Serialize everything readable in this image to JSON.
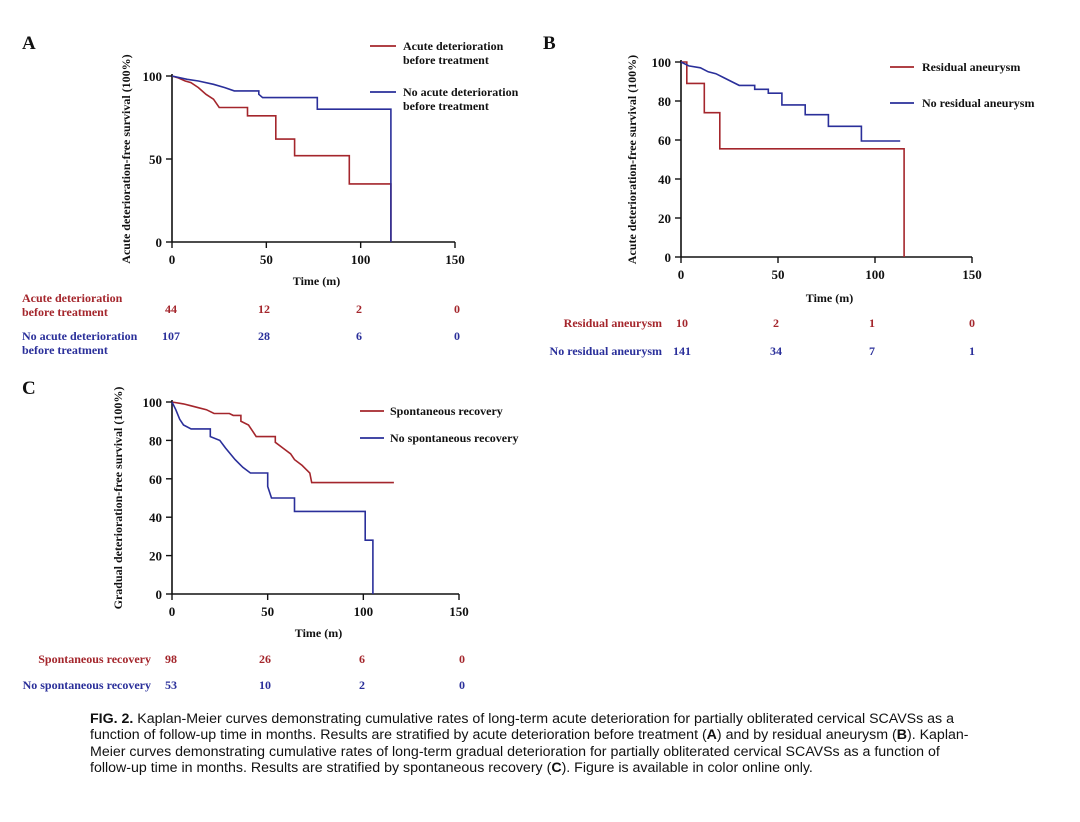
{
  "colors": {
    "red": "#a4262c",
    "blue": "#2a2f9a",
    "axis": "#111111"
  },
  "chart_data": [
    {
      "panel": "A",
      "type": "line",
      "xlabel": "Time (m)",
      "ylabel": "Acute deterioration-free survival (100%)",
      "xlim": [
        0,
        150
      ],
      "ylim": [
        0,
        100
      ],
      "xticks": [
        "0",
        "50",
        "100",
        "150"
      ],
      "yticks": [
        "0",
        "50",
        "100"
      ],
      "x_tick_values": [
        0,
        50,
        100,
        150
      ],
      "y_tick_values": [
        0,
        50,
        100
      ],
      "series": [
        {
          "name_lines": [
            "Acute deterioration",
            "before treatment"
          ],
          "color": "#a4262c",
          "points": [
            [
              0,
              100
            ],
            [
              3,
              99
            ],
            [
              7,
              97
            ],
            [
              10,
              96
            ],
            [
              14,
              93
            ],
            [
              18,
              89
            ],
            [
              22,
              86
            ],
            [
              25,
              81
            ],
            [
              40,
              81
            ],
            [
              40,
              76
            ],
            [
              55,
              76
            ],
            [
              55,
              62
            ],
            [
              65,
              62
            ],
            [
              65,
              52
            ],
            [
              94,
              52
            ],
            [
              94,
              35
            ],
            [
              116,
              35
            ],
            [
              116,
              0
            ]
          ]
        },
        {
          "name_lines": [
            "No acute deterioration",
            "before treatment"
          ],
          "color": "#2a2f9a",
          "points": [
            [
              0,
              100
            ],
            [
              4,
              99
            ],
            [
              8,
              98
            ],
            [
              14,
              97
            ],
            [
              22,
              95
            ],
            [
              28,
              93
            ],
            [
              33,
              91
            ],
            [
              46,
              91
            ],
            [
              46,
              89
            ],
            [
              48,
              87
            ],
            [
              77,
              87
            ],
            [
              77,
              80
            ],
            [
              116,
              80
            ],
            [
              116,
              0
            ]
          ]
        }
      ],
      "risk_table": {
        "x_values": [
          0,
          50,
          100,
          150
        ],
        "rows": [
          {
            "label_lines": [
              "Acute deterioration",
              "before treatment"
            ],
            "color": "#a4262c",
            "values": [
              "44",
              "12",
              "2",
              "0"
            ]
          },
          {
            "label_lines": [
              "No acute deterioration",
              "before treatment"
            ],
            "color": "#2a2f9a",
            "values": [
              "107",
              "28",
              "6",
              "0"
            ]
          }
        ]
      }
    },
    {
      "panel": "B",
      "type": "line",
      "xlabel": "Time (m)",
      "ylabel": "Acute deterioration-free survival (100%)",
      "xlim": [
        0,
        150
      ],
      "ylim": [
        0,
        100
      ],
      "xticks": [
        "0",
        "50",
        "100",
        "150"
      ],
      "yticks": [
        "0",
        "20",
        "40",
        "60",
        "80",
        "100"
      ],
      "x_tick_values": [
        0,
        50,
        100,
        150
      ],
      "y_tick_values": [
        0,
        20,
        40,
        60,
        80,
        100
      ],
      "series": [
        {
          "name_lines": [
            "Residual aneurysm"
          ],
          "color": "#a4262c",
          "points": [
            [
              0,
              100
            ],
            [
              3,
              100
            ],
            [
              3,
              89
            ],
            [
              12,
              89
            ],
            [
              12,
              74
            ],
            [
              20,
              74
            ],
            [
              20,
              55.5
            ],
            [
              115,
              55.5
            ],
            [
              115,
              0
            ]
          ]
        },
        {
          "name_lines": [
            "No residual aneurysm"
          ],
          "color": "#2a2f9a",
          "points": [
            [
              0,
              100
            ],
            [
              4,
              98
            ],
            [
              10,
              97
            ],
            [
              14,
              95
            ],
            [
              18,
              94
            ],
            [
              22,
              92
            ],
            [
              26,
              90
            ],
            [
              30,
              88
            ],
            [
              38,
              88
            ],
            [
              38,
              86
            ],
            [
              45,
              86
            ],
            [
              45,
              84
            ],
            [
              52,
              84
            ],
            [
              52,
              78
            ],
            [
              64,
              78
            ],
            [
              64,
              73
            ],
            [
              76,
              73
            ],
            [
              76,
              67
            ],
            [
              93,
              67
            ],
            [
              93,
              59.5
            ],
            [
              113,
              59.5
            ]
          ]
        }
      ],
      "risk_table": {
        "x_values": [
          0,
          50,
          100,
          150
        ],
        "rows": [
          {
            "label_lines": [
              "Residual aneurysm"
            ],
            "color": "#a4262c",
            "values": [
              "10",
              "2",
              "1",
              "0"
            ]
          },
          {
            "label_lines": [
              "No residual aneurysm"
            ],
            "color": "#2a2f9a",
            "values": [
              "141",
              "34",
              "7",
              "1"
            ]
          }
        ]
      }
    },
    {
      "panel": "C",
      "type": "line",
      "xlabel": "Time (m)",
      "ylabel": "Gradual deterioration-free survival (100%)",
      "xlim": [
        0,
        150
      ],
      "ylim": [
        0,
        100
      ],
      "xticks": [
        "0",
        "50",
        "100",
        "150"
      ],
      "yticks": [
        "0",
        "20",
        "40",
        "60",
        "80",
        "100"
      ],
      "x_tick_values": [
        0,
        50,
        100,
        150
      ],
      "y_tick_values": [
        0,
        20,
        40,
        60,
        80,
        100
      ],
      "series": [
        {
          "name_lines": [
            "Spontaneous recovery"
          ],
          "color": "#a4262c",
          "points": [
            [
              0,
              100
            ],
            [
              6,
              99
            ],
            [
              10,
              98
            ],
            [
              14,
              97
            ],
            [
              18,
              96
            ],
            [
              22,
              94
            ],
            [
              30,
              94
            ],
            [
              32,
              93
            ],
            [
              36,
              93
            ],
            [
              36,
              90
            ],
            [
              40,
              88
            ],
            [
              42,
              85
            ],
            [
              44,
              82
            ],
            [
              54,
              82
            ],
            [
              54,
              79
            ],
            [
              58,
              76
            ],
            [
              62,
              73
            ],
            [
              64,
              70
            ],
            [
              68,
              67
            ],
            [
              70,
              65
            ],
            [
              72,
              63
            ],
            [
              73,
              58
            ],
            [
              116,
              58
            ]
          ]
        },
        {
          "name_lines": [
            "No spontaneous recovery"
          ],
          "color": "#2a2f9a",
          "points": [
            [
              0,
              100
            ],
            [
              2,
              96
            ],
            [
              4,
              91
            ],
            [
              6,
              88
            ],
            [
              10,
              86
            ],
            [
              20,
              86
            ],
            [
              20,
              82
            ],
            [
              25,
              80
            ],
            [
              28,
              76
            ],
            [
              33,
              70
            ],
            [
              37,
              66
            ],
            [
              41,
              63
            ],
            [
              50,
              63
            ],
            [
              50,
              56
            ],
            [
              52,
              50
            ],
            [
              64,
              50
            ],
            [
              64,
              43
            ],
            [
              101,
              43
            ],
            [
              101,
              28
            ],
            [
              105,
              28
            ],
            [
              105,
              0
            ]
          ]
        }
      ],
      "risk_table": {
        "x_values": [
          0,
          50,
          100,
          150
        ],
        "rows": [
          {
            "label_lines": [
              "Spontaneous recovery"
            ],
            "color": "#a4262c",
            "values": [
              "98",
              "26",
              "6",
              "0"
            ]
          },
          {
            "label_lines": [
              "No spontaneous recovery"
            ],
            "color": "#2a2f9a",
            "values": [
              "53",
              "10",
              "2",
              "0"
            ]
          }
        ]
      }
    }
  ],
  "caption": {
    "segments": [
      {
        "text": "FIG. 2.",
        "bold": true
      },
      {
        "text": " Kaplan-Meier curves demonstrating cumulative rates of long-term acute deterioration for partially obliterated cervical SCAVSs as a function of follow-up time in months. Results are stratified by acute deterioration before treatment (",
        "bold": false
      },
      {
        "text": "A",
        "bold": true
      },
      {
        "text": ") and by residual aneurysm (",
        "bold": false
      },
      {
        "text": "B",
        "bold": true
      },
      {
        "text": "). Kaplan-Meier curves demonstrating cumulative rates of long-term gradual deterioration for partially obliterated cervical SCAVSs as a function of follow-up time in months. Results are stratified by spontaneous recovery (",
        "bold": false
      },
      {
        "text": "C",
        "bold": true
      },
      {
        "text": "). Figure is available in color online only.",
        "bold": false
      }
    ]
  }
}
